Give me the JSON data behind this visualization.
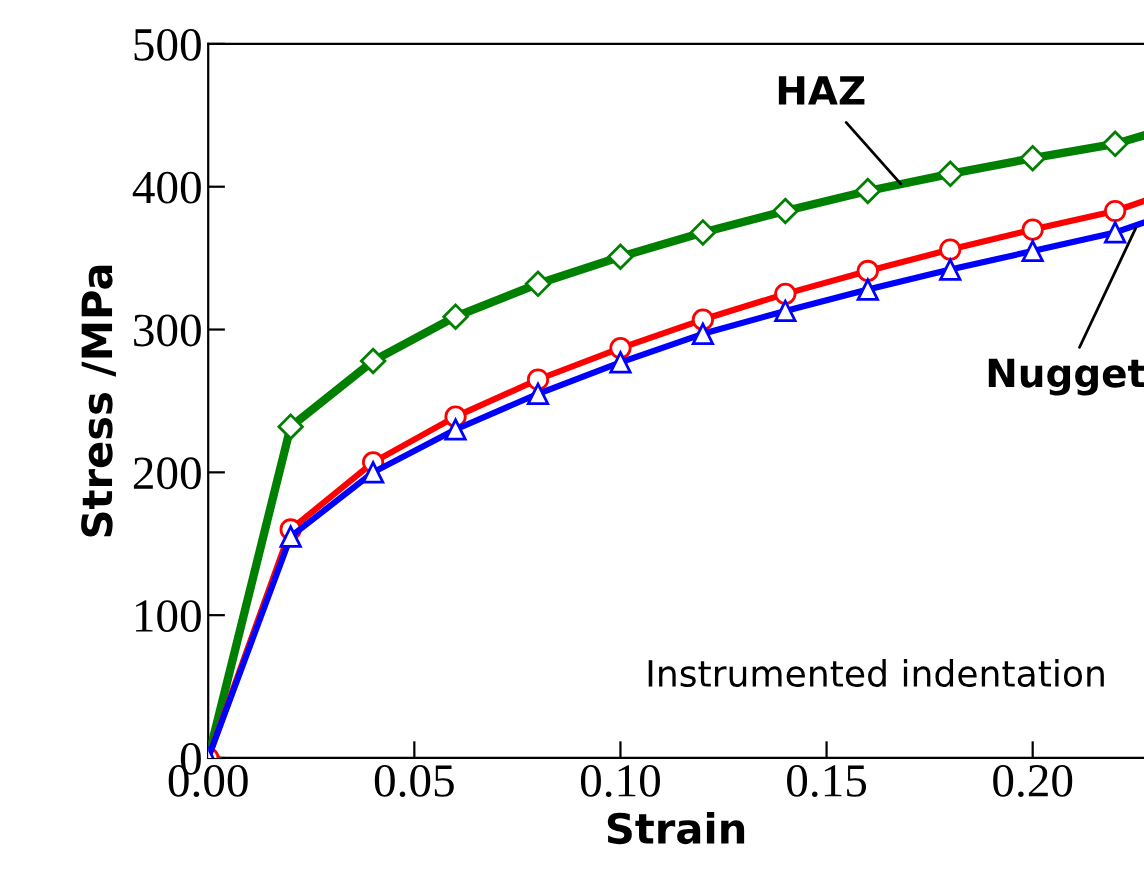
{
  "chart_data": {
    "type": "line",
    "xlabel": "Strain",
    "ylabel": "Stress /MPa",
    "x": [
      0,
      0.02,
      0.04,
      0.06,
      0.08,
      0.1,
      0.12,
      0.14,
      0.16,
      0.18,
      0.2,
      0.22,
      0.227
    ],
    "series": [
      {
        "color": "#008000",
        "marker": "diamond",
        "values": [
          0,
          232,
          278,
          309,
          332,
          351,
          368,
          383,
          397,
          409,
          420,
          430,
          436
        ]
      },
      {
        "color": "#ff0000",
        "marker": "circle",
        "values": [
          0,
          160,
          207,
          239,
          265,
          287,
          307,
          325,
          341,
          356,
          370,
          383,
          390
        ]
      },
      {
        "color": "#0000ff",
        "marker": "triangle",
        "values": [
          0,
          155,
          200,
          230,
          255,
          277,
          297,
          313,
          328,
          342,
          355,
          368,
          375
        ]
      }
    ],
    "xlim": [
      0,
      0.227
    ],
    "ylim": [
      0,
      500
    ],
    "xticks": [
      {
        "value": 0,
        "label": "0.00"
      },
      0.05,
      {
        "value": 0.1,
        "label": "0.10"
      },
      0.15,
      {
        "value": 0.2,
        "label": "0.20"
      }
    ],
    "yticks": [
      0,
      100,
      200,
      300,
      400,
      500
    ],
    "grid": false,
    "legend": false,
    "annotations": [
      {
        "text": "HAZ",
        "x": 0.168,
        "y": 402
      },
      {
        "text": "Nugget",
        "x": 0.225,
        "y": 371
      },
      "Instrumented indentation"
    ]
  }
}
